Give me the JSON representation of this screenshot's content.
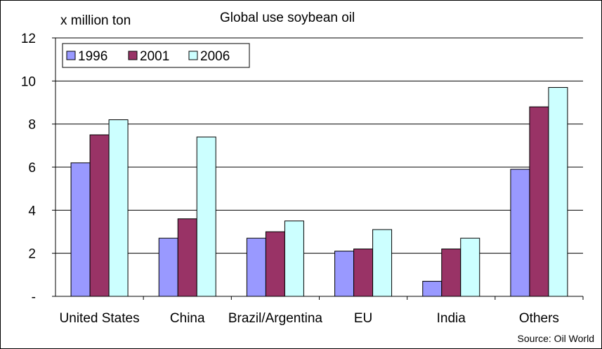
{
  "chart_data": {
    "type": "bar",
    "title": "Global use soybean oil",
    "ylabel": "x million ton",
    "xlabel": "",
    "source": "Source: Oil World",
    "categories": [
      "United States",
      "China",
      "Brazil/Argentina",
      "EU",
      "India",
      "Others"
    ],
    "series": [
      {
        "name": "1996",
        "color": "#9999ff",
        "values": [
          6.2,
          2.7,
          2.7,
          2.1,
          0.7,
          5.9
        ]
      },
      {
        "name": "2001",
        "color": "#993366",
        "values": [
          7.5,
          3.6,
          3.0,
          2.2,
          2.2,
          8.8
        ]
      },
      {
        "name": "2006",
        "color": "#ccffff",
        "values": [
          8.2,
          7.4,
          3.5,
          3.1,
          2.7,
          9.7
        ]
      }
    ],
    "ylim": [
      0,
      12
    ],
    "yticks": [
      0,
      2,
      4,
      6,
      8,
      10,
      12
    ],
    "ytick_labels": [
      "-",
      "2",
      "4",
      "6",
      "8",
      "10",
      "12"
    ],
    "grid": true,
    "legend_position": "top-left"
  }
}
